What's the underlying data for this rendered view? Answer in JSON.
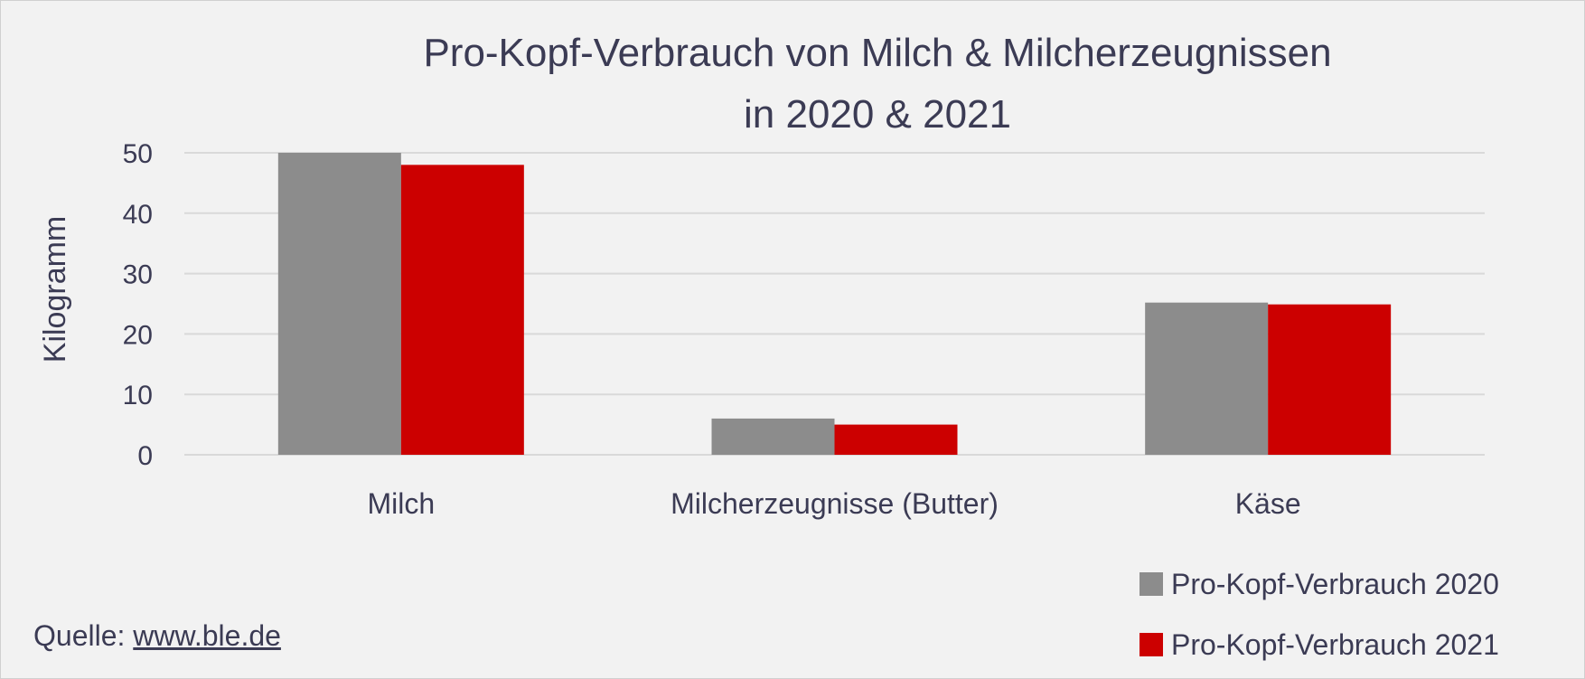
{
  "chart_data": {
    "type": "bar",
    "title_lines": [
      "Pro-Kopf-Verbrauch von Milch & Milcherzeugnissen",
      "in 2020 & 2021"
    ],
    "categories": [
      "Milch",
      "Milcherzeugnisse (Butter)",
      "Käse"
    ],
    "series": [
      {
        "name": "Pro-Kopf-Verbrauch 2020",
        "values": [
          50,
          6,
          25.2
        ],
        "color": "#8c8c8c"
      },
      {
        "name": "Pro-Kopf-Verbrauch 2021",
        "values": [
          48,
          5,
          24.9
        ],
        "color": "#cc0000"
      }
    ],
    "xlabel": "",
    "ylabel": "Kilogramm",
    "ylim": [
      0,
      50
    ],
    "yticks": [
      0,
      10,
      20,
      30,
      40,
      50
    ],
    "grid": true,
    "legend_position": "bottom-right"
  },
  "source": {
    "label": "Quelle: ",
    "link_text": "www.ble.de"
  }
}
